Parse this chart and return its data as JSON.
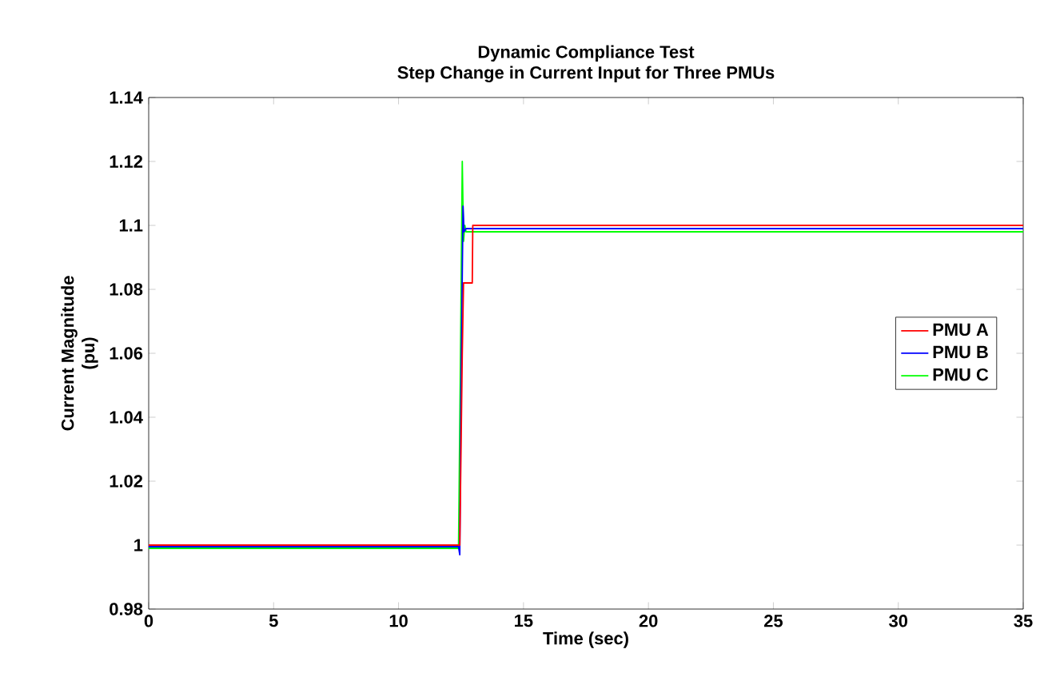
{
  "chart_data": {
    "type": "line",
    "title": "Dynamic Compliance Test",
    "subtitle": "Step Change in Current Input for Three PMUs",
    "xlabel": "Time (sec)",
    "ylabel": "Current Magnitude\n(pu)",
    "xlim": [
      0,
      35
    ],
    "xticks": [
      0,
      5,
      10,
      15,
      20,
      25,
      30,
      35
    ],
    "ylim": [
      0.98,
      1.14
    ],
    "yticks": [
      0.98,
      1,
      1.02,
      1.04,
      1.06,
      1.08,
      1.1,
      1.12,
      1.14
    ],
    "legend": "right",
    "grid": false,
    "series": [
      {
        "name": "PMU A",
        "color": "#ff0000",
        "x": [
          0,
          5,
          10,
          12.45,
          12.55,
          12.6,
          12.62,
          12.95,
          12.97,
          20,
          35
        ],
        "values": [
          1.0,
          1.0,
          1.0,
          1.0,
          1.06,
          1.082,
          1.082,
          1.082,
          1.1,
          1.1,
          1.1
        ]
      },
      {
        "name": "PMU B",
        "color": "#0000ff",
        "x": [
          0,
          5,
          10,
          12.4,
          12.45,
          12.5,
          12.58,
          12.62,
          12.7,
          20,
          35
        ],
        "values": [
          0.9995,
          0.9995,
          0.9995,
          0.9995,
          0.997,
          1.05,
          1.106,
          1.098,
          1.099,
          1.099,
          1.099
        ]
      },
      {
        "name": "PMU C",
        "color": "#00ff00",
        "x": [
          0,
          5,
          10,
          12.4,
          12.48,
          12.55,
          12.6,
          12.65,
          12.7,
          20,
          35
        ],
        "values": [
          0.999,
          0.999,
          0.999,
          0.999,
          1.06,
          1.12,
          1.095,
          1.1,
          1.098,
          1.098,
          1.098
        ]
      }
    ]
  }
}
